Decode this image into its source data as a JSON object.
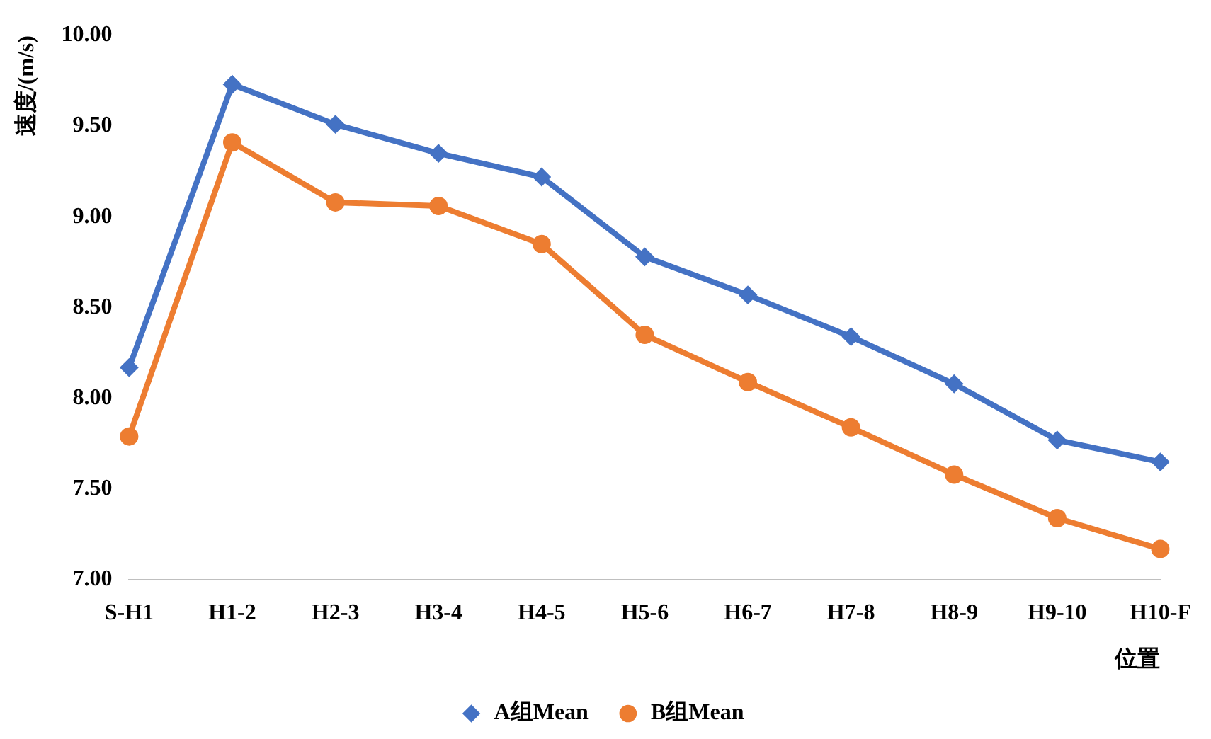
{
  "chart_data": {
    "type": "line",
    "ylabel": "速度/(m/s)",
    "xlabel": "位置",
    "categories": [
      "S-H1",
      "H1-2",
      "H2-3",
      "H3-4",
      "H4-5",
      "H5-6",
      "H6-7",
      "H7-8",
      "H8-9",
      "H9-10",
      "H10-F"
    ],
    "series": [
      {
        "name": "A组Mean",
        "color": "#4472c4",
        "marker": "diamond",
        "values": [
          8.17,
          9.73,
          9.51,
          9.35,
          9.22,
          8.78,
          8.57,
          8.34,
          8.08,
          7.77,
          7.65
        ]
      },
      {
        "name": "B组Mean",
        "color": "#ed7d31",
        "marker": "circle",
        "values": [
          7.79,
          9.41,
          9.08,
          9.06,
          8.85,
          8.35,
          8.09,
          7.84,
          7.58,
          7.34,
          7.17
        ]
      }
    ],
    "ylim": [
      7,
      10
    ],
    "yticks": [
      {
        "value": 7,
        "label": "7.00"
      },
      {
        "value": 7.5,
        "label": "7.50"
      },
      {
        "value": 8,
        "label": "8.00"
      },
      {
        "value": 8.5,
        "label": "8.50"
      },
      {
        "value": 9,
        "label": "9.00"
      },
      {
        "value": 9.5,
        "label": "9.50"
      },
      {
        "value": 10,
        "label": "10.00"
      }
    ],
    "grid": false,
    "legend": "bottom",
    "line_style": "solid"
  }
}
